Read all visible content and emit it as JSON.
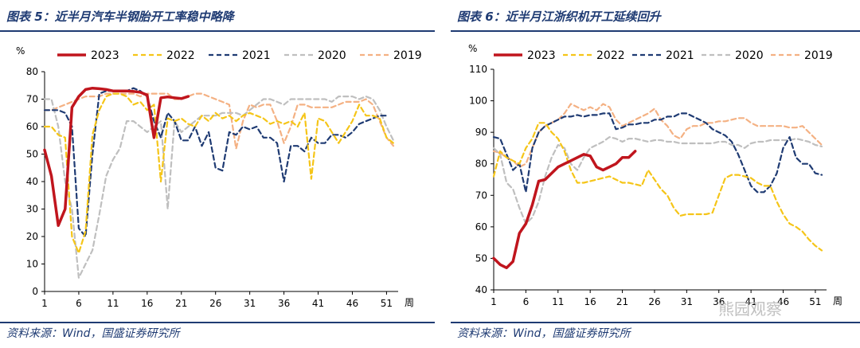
{
  "charts": [
    {
      "title": "图表 5：近半月汽车半钢胎开工率稳中略降",
      "source": "资料来源：Wind，国盛证券研究所",
      "chart_data": {
        "type": "line",
        "unit_label": "%",
        "xlabel": "周",
        "xlim": [
          1,
          52
        ],
        "xticks": [
          1,
          6,
          11,
          16,
          21,
          26,
          31,
          36,
          41,
          46,
          51
        ],
        "ylim": [
          0,
          80
        ],
        "yticks": [
          0,
          10,
          20,
          30,
          40,
          50,
          60,
          70,
          80
        ],
        "legend_position": "top",
        "series": [
          {
            "name": "2023",
            "color": "#c0151d",
            "dash": "solid",
            "width": 3.5,
            "values": [
              51.5,
              42,
              24,
              30,
              67,
              71,
              73.5,
              74,
              73.8,
              73.5,
              73,
              73,
              73,
              72.8,
              72.5,
              71.5,
              56,
              70.5,
              70.8,
              70.5,
              70.2,
              71
            ]
          },
          {
            "name": "2022",
            "color": "#f5c518",
            "dash": "dashed",
            "width": 2.2,
            "values": [
              60,
              60,
              57,
              56,
              20,
              14,
              22,
              57,
              66,
              71,
              72,
              72,
              71,
              68,
              69,
              66,
              68,
              40,
              63,
              62,
              63,
              61,
              60,
              64,
              62,
              65,
              63,
              64,
              62,
              64,
              65,
              64,
              63,
              61,
              62,
              61,
              62,
              60,
              65,
              41,
              63,
              62,
              58,
              54,
              58,
              62,
              68,
              64,
              64,
              63,
              56,
              54
            ]
          },
          {
            "name": "2021",
            "color": "#1f3b73",
            "dash": "dashed",
            "width": 2.2,
            "values": [
              66,
              66,
              66,
              65,
              60,
              23,
              20,
              50,
              72,
              73,
              73,
              73,
              73,
              74,
              73,
              71,
              62,
              56,
              65,
              62,
              55,
              55,
              60,
              53,
              58,
              45,
              44,
              58,
              57,
              60,
              59,
              60,
              56,
              56,
              54,
              40,
              53,
              53,
              51,
              56,
              54,
              54,
              57,
              57,
              56,
              58,
              61,
              62,
              63,
              64,
              64
            ]
          },
          {
            "name": "2020",
            "color": "#bfbfbf",
            "dash": "dashed",
            "width": 2.2,
            "values": [
              70,
              70,
              60,
              40,
              30,
              5,
              10,
              15,
              28,
              42,
              48,
              52,
              62,
              62,
              60,
              58,
              60,
              62,
              30,
              62,
              58,
              60,
              62,
              64,
              64,
              64,
              65,
              65,
              65,
              64,
              66,
              68,
              70,
              70,
              69,
              68,
              70,
              70,
              70,
              70,
              70,
              70,
              69,
              71,
              71,
              71,
              70,
              71,
              70,
              66,
              60,
              55
            ]
          },
          {
            "name": "2019",
            "color": "#f4b183",
            "dash": "dashed",
            "width": 2.2,
            "values": [
              66,
              66,
              67,
              68,
              69,
              70,
              71,
              71,
              71,
              72,
              72,
              72,
              72,
              72,
              71,
              72,
              72,
              72,
              72,
              70,
              70,
              71,
              72,
              72,
              71,
              70,
              69,
              68,
              52,
              62,
              68,
              67,
              68,
              68,
              62,
              54,
              60,
              68,
              68,
              67,
              67,
              67,
              67,
              68,
              69,
              69,
              69,
              70,
              68,
              62,
              56,
              53
            ]
          }
        ]
      }
    },
    {
      "title": "图表 6：近半月江浙织机开工延续回升",
      "source": "资料来源：Wind，国盛证券研究所",
      "chart_data": {
        "type": "line",
        "unit_label": "%",
        "xlabel": "周",
        "xlim": [
          1,
          52
        ],
        "xticks": [
          1,
          6,
          11,
          16,
          21,
          26,
          31,
          36,
          41,
          46,
          51
        ],
        "ylim": [
          40,
          110
        ],
        "yticks": [
          40,
          50,
          60,
          70,
          80,
          90,
          100,
          110
        ],
        "legend_position": "top",
        "series": [
          {
            "name": "2023",
            "color": "#c0151d",
            "dash": "solid",
            "width": 3.5,
            "values": [
              50,
              48,
              47,
              49,
              58,
              61,
              67,
              74.5,
              75,
              77,
              79,
              80,
              81,
              82,
              83,
              82.5,
              79,
              78,
              79,
              80,
              82,
              82,
              84
            ]
          },
          {
            "name": "2022",
            "color": "#f5c518",
            "dash": "dashed",
            "width": 2.2,
            "values": [
              76,
              84,
              82,
              81,
              80,
              85,
              88,
              93,
              93,
              90,
              88,
              84,
              78,
              74,
              74,
              74.5,
              75,
              75.5,
              76,
              75,
              74,
              74,
              73.5,
              73,
              78,
              75,
              72,
              70,
              66,
              63.5,
              64,
              64,
              64,
              64,
              64.5,
              70,
              75.5,
              76.5,
              76.5,
              76,
              75.5,
              74,
              73,
              73,
              68,
              64,
              61,
              60,
              58.5,
              56,
              54,
              52.5
            ]
          },
          {
            "name": "2021",
            "color": "#1f3b73",
            "dash": "dashed",
            "width": 2.2,
            "values": [
              88.5,
              88,
              83,
              78,
              80,
              71,
              85,
              90,
              92,
              93,
              94,
              95,
              95,
              95.5,
              95,
              95.5,
              95.5,
              96,
              96,
              91,
              91.5,
              92.5,
              92.5,
              93,
              93,
              94,
              94,
              95,
              95,
              96,
              96,
              95,
              94,
              93,
              91,
              90,
              89,
              87,
              83,
              78,
              73,
              71,
              71,
              73,
              77,
              85,
              88.5,
              82,
              80,
              80,
              77,
              76.5
            ]
          },
          {
            "name": "2020",
            "color": "#bfbfbf",
            "dash": "dashed",
            "width": 2.2,
            "values": [
              85,
              83,
              74,
              72,
              66,
              61,
              63,
              68,
              76,
              82,
              86,
              85,
              80,
              78,
              82,
              85,
              86,
              87,
              88.5,
              88,
              87,
              88,
              88,
              87.5,
              87,
              87.5,
              87.5,
              87,
              87,
              86.5,
              86.5,
              86.5,
              86.5,
              86.5,
              86.5,
              87,
              87,
              86,
              86,
              85,
              86.5,
              87,
              87,
              87.5,
              87.5,
              87.5,
              87.5,
              88,
              87.5,
              87,
              86,
              85.5
            ]
          },
          {
            "name": "2019",
            "color": "#f4b183",
            "dash": "dashed",
            "width": 2.2,
            "values": [
              84,
              83.5,
              82,
              81,
              79,
              80,
              85,
              90,
              92,
              93,
              94,
              96,
              99,
              98,
              97,
              98,
              97,
              99,
              98,
              94,
              92,
              93,
              94,
              95,
              96,
              97.5,
              94,
              92,
              89,
              88,
              91,
              92,
              92,
              93,
              93,
              93.5,
              93.5,
              94,
              94.5,
              94.5,
              93,
              92,
              92,
              92,
              92,
              92,
              91.5,
              91.5,
              92,
              90,
              88,
              86
            ]
          }
        ]
      }
    }
  ],
  "watermark": "熊园观察"
}
